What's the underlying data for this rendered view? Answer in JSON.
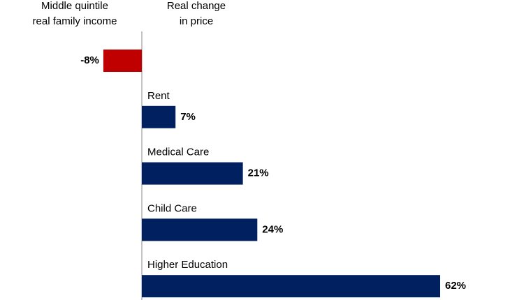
{
  "chart_data": {
    "type": "hbar",
    "headers": [
      [
        "Middle quintile",
        "real family income"
      ],
      [
        "Real change",
        "in price"
      ]
    ],
    "categories": [
      null,
      "Rent",
      "Medical Care",
      "Child Care",
      "Higher Education"
    ],
    "values": [
      -8,
      7,
      21,
      24,
      62
    ],
    "value_labels": [
      "-8%",
      "7%",
      "21%",
      "24%",
      "62%"
    ],
    "colors": [
      "#c00000",
      "#002060",
      "#002060",
      "#002060",
      "#002060"
    ]
  }
}
